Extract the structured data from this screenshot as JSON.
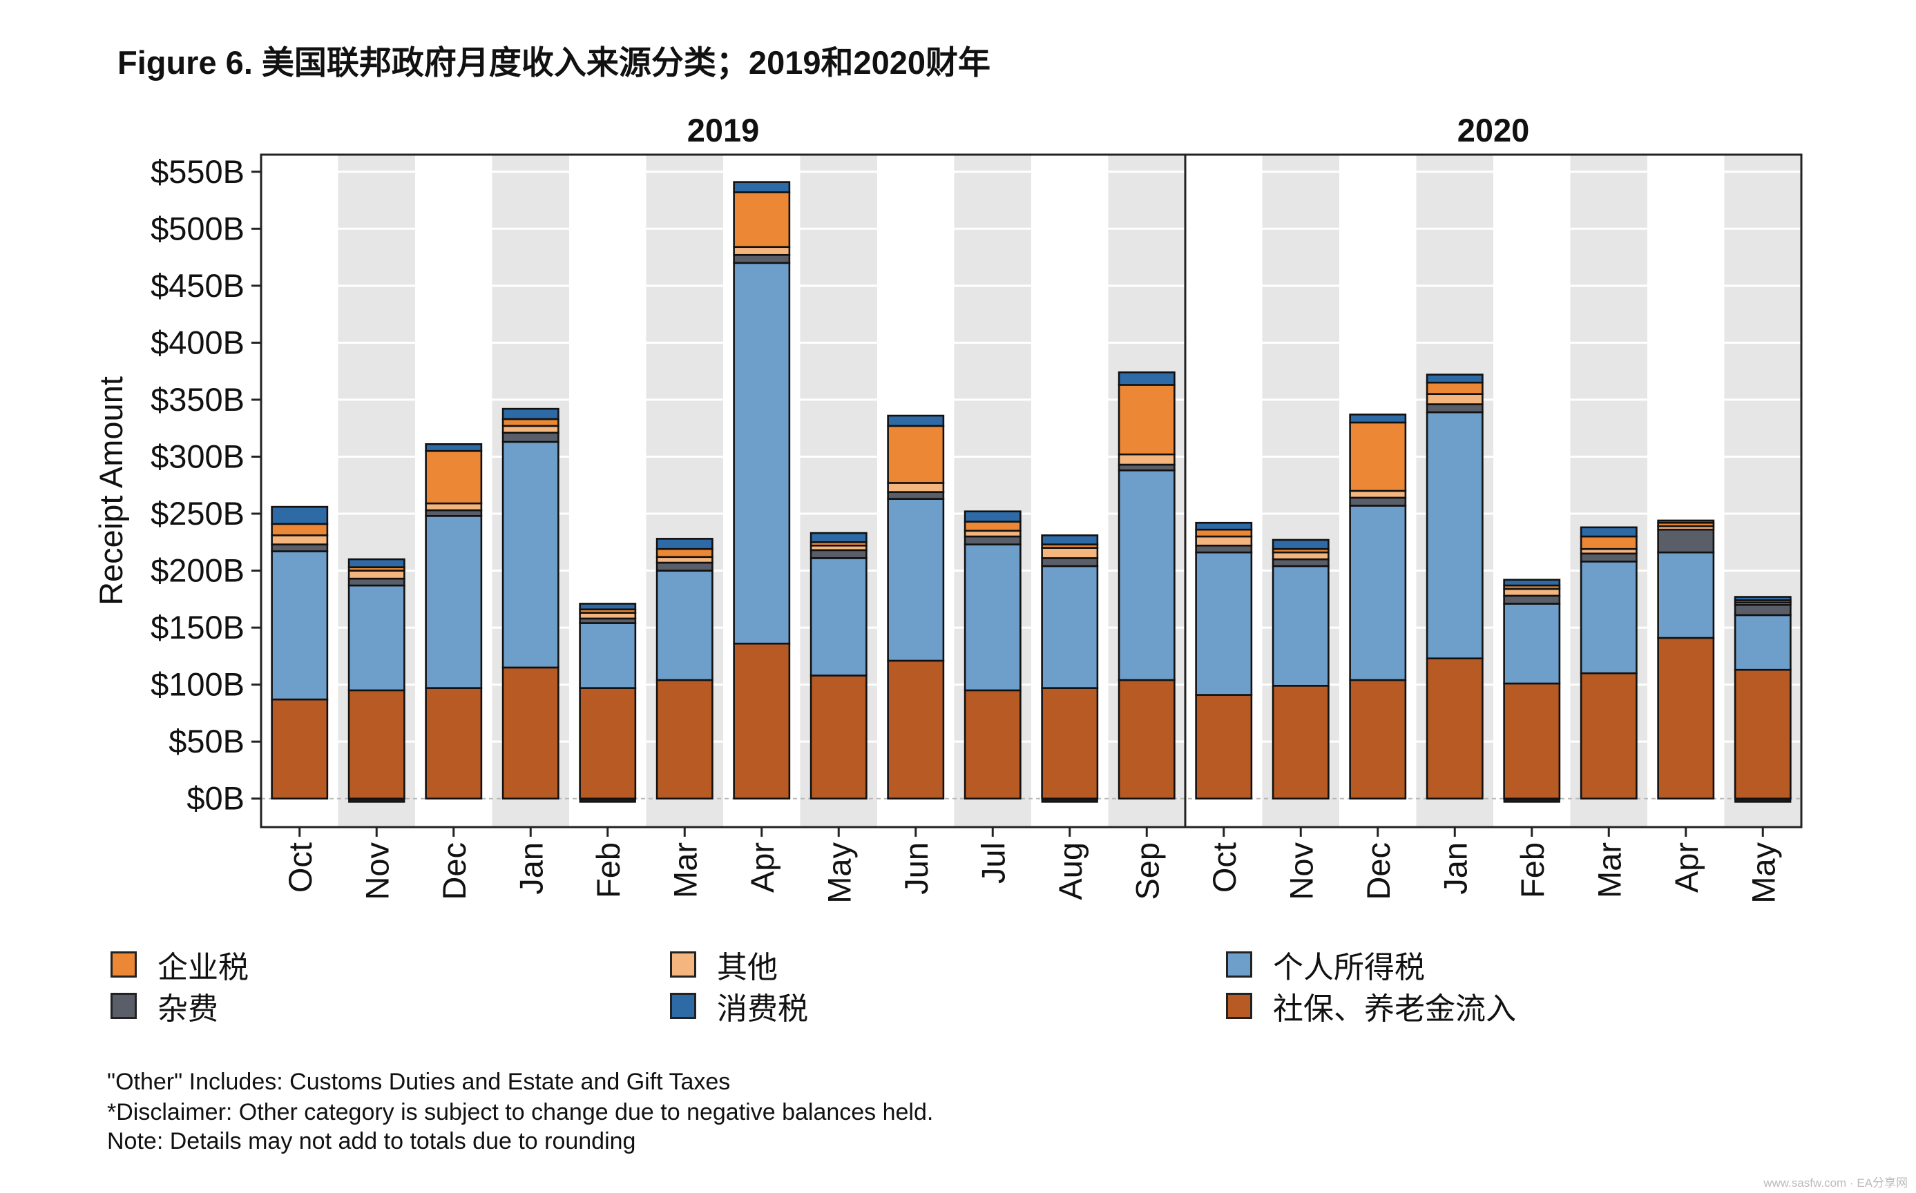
{
  "title": "Figure 6.  美国联邦政府月度收入来源分类；2019和2020财年",
  "chart_data": {
    "type": "bar",
    "stacked": true,
    "ylabel": "Receipt Amount",
    "ylim": [
      -25,
      565
    ],
    "yticks": [
      0,
      50,
      100,
      150,
      200,
      250,
      300,
      350,
      400,
      450,
      500,
      550
    ],
    "ytick_labels": [
      "$0B",
      "$50B",
      "$100B",
      "$150B",
      "$200B",
      "$250B",
      "$300B",
      "$350B",
      "$400B",
      "$450B",
      "$500B",
      "$550B"
    ],
    "grid": true,
    "legend_position": "bottom",
    "panels": [
      {
        "label": "2019",
        "categories": [
          "Oct",
          "Nov",
          "Dec",
          "Jan",
          "Feb",
          "Mar",
          "Apr",
          "May",
          "Jun",
          "Jul",
          "Aug",
          "Sep"
        ]
      },
      {
        "label": "2020",
        "categories": [
          "Oct",
          "Nov",
          "Dec",
          "Jan",
          "Feb",
          "Mar",
          "Apr",
          "May"
        ]
      }
    ],
    "series": [
      {
        "name": "社保、养老金流入",
        "color": "#b85a24",
        "values": [
          87,
          95,
          97,
          115,
          97,
          104,
          136,
          108,
          121,
          95,
          97,
          104,
          91,
          99,
          104,
          123,
          101,
          110,
          141,
          113
        ],
        "below_zero": [
          0,
          3,
          0,
          0,
          3,
          0,
          0,
          0,
          0,
          0,
          3,
          0,
          0,
          0,
          0,
          0,
          3,
          0,
          0,
          3
        ]
      },
      {
        "name": "个人所得税",
        "color": "#6e9fcb",
        "values": [
          130,
          92,
          151,
          198,
          57,
          96,
          334,
          103,
          142,
          128,
          107,
          184,
          125,
          105,
          153,
          216,
          70,
          98,
          75,
          48
        ]
      },
      {
        "name": "杂费",
        "color": "#5a5e68",
        "values": [
          6,
          6,
          5,
          8,
          4,
          7,
          7,
          7,
          6,
          7,
          7,
          5,
          6,
          6,
          7,
          7,
          7,
          7,
          20,
          9
        ]
      },
      {
        "name": "其他",
        "color": "#f4b57e",
        "values": [
          8,
          7,
          6,
          6,
          5,
          5,
          7,
          4,
          8,
          5,
          9,
          9,
          8,
          6,
          6,
          9,
          6,
          4,
          3,
          2
        ]
      },
      {
        "name": "企业税",
        "color": "#eb8735",
        "values": [
          10,
          3,
          46,
          6,
          3,
          7,
          48,
          3,
          50,
          8,
          3,
          61,
          6,
          3,
          60,
          10,
          3,
          11,
          3,
          2
        ]
      },
      {
        "name": "消费税",
        "color": "#2e6aa6",
        "values": [
          15,
          7,
          6,
          9,
          5,
          9,
          9,
          8,
          9,
          9,
          8,
          11,
          6,
          8,
          7,
          7,
          5,
          8,
          2,
          3
        ]
      }
    ]
  },
  "legend": [
    {
      "label": "企业税",
      "color": "#eb8735"
    },
    {
      "label": "其他",
      "color": "#f4b57e"
    },
    {
      "label": "个人所得税",
      "color": "#6e9fcb"
    },
    {
      "label": "杂费",
      "color": "#5a5e68"
    },
    {
      "label": "消费税",
      "color": "#2e6aa6"
    },
    {
      "label": "社保、养老金流入",
      "color": "#b85a24"
    }
  ],
  "notes": [
    "\"Other\" Includes: Customs Duties and Estate and Gift Taxes",
    "*Disclaimer: Other category is subject to change due to negative balances held.",
    "Note: Details may not add to totals due to rounding"
  ],
  "watermark": "www.sasfw.com · EA分享网"
}
